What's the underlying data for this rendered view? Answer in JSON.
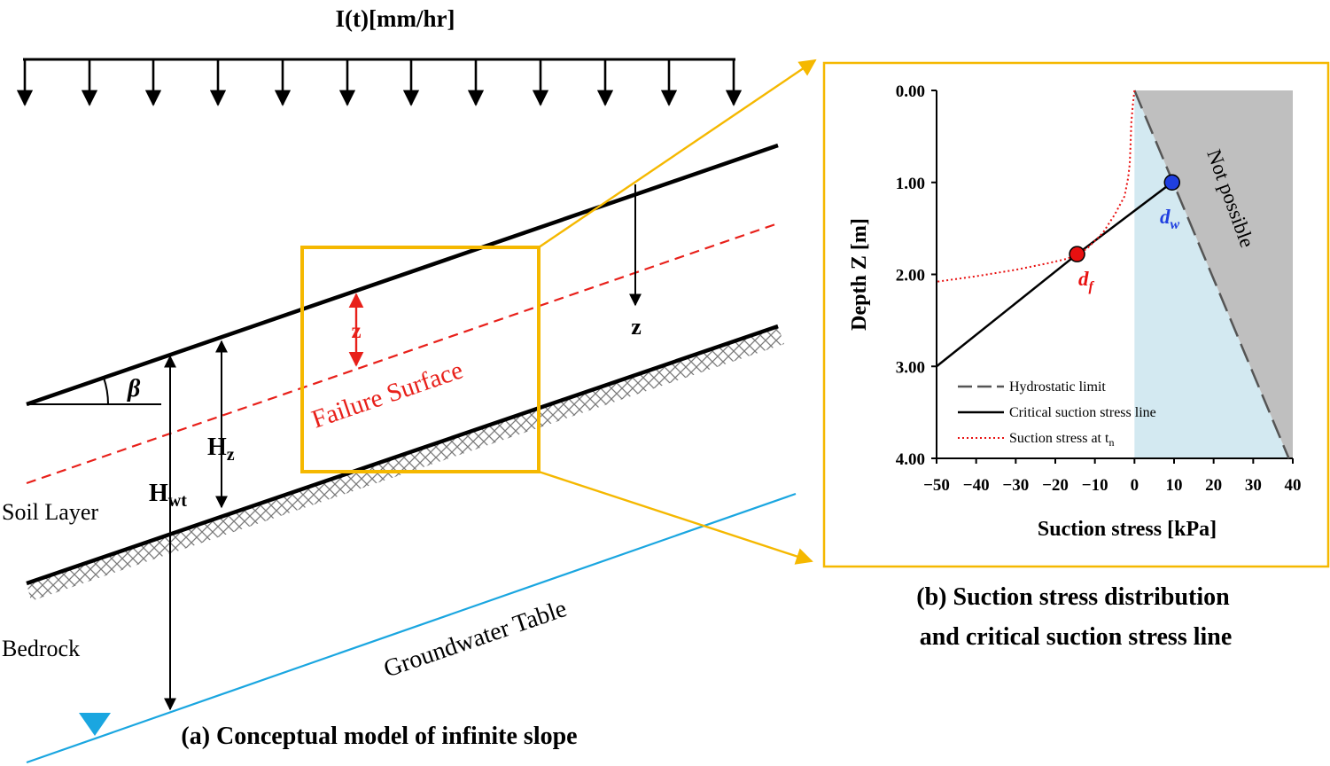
{
  "panel_a": {
    "rain_label": "I(t)[mm/hr]",
    "beta": "β",
    "z_label": "z",
    "z_red": "z",
    "failure_surface": "Failure Surface",
    "hz_main": "H",
    "hz_sub": "z",
    "hwt_main": "H",
    "hwt_sub": "wt",
    "soil_layer": "Soil Layer",
    "bedrock": "Bedrock",
    "groundwater": "Groundwater Table",
    "caption": "(a) Conceptual model of infinite slope"
  },
  "panel_b": {
    "caption_line1": "(b) Suction stress distribution",
    "caption_line2": "and critical suction stress line",
    "not_possible": "Not possible",
    "df_main": "d",
    "df_sub": "f",
    "dw_main": "d",
    "dw_sub": "w"
  },
  "colors": {
    "highlight": "#f5b800",
    "failure": "#e8201a",
    "groundwater": "#1aa6e0",
    "grey_region": "#bfbfbf",
    "blue_region": "#d3e9f1",
    "dw_marker": "#1f3fe0",
    "df_marker": "#e81010"
  },
  "chart_data": {
    "type": "line",
    "xlabel": "Suction stress  [kPa]",
    "ylabel": "Depth Z [m]",
    "xlim": [
      -50,
      40
    ],
    "ylim": [
      0,
      4
    ],
    "y_inverted": true,
    "x_ticks": [
      "−50",
      "−40",
      "−30",
      "−20",
      "−10",
      "0",
      "10",
      "20",
      "30",
      "40"
    ],
    "y_ticks": [
      "0.00",
      "1.00",
      "2.00",
      "3.00",
      "4.00"
    ],
    "legend_position": "bottom-left",
    "series": [
      {
        "name": "Hydrostatic limit",
        "style": "dashed",
        "color": "#555555",
        "x": [
          0,
          39
        ],
        "y": [
          0,
          4
        ]
      },
      {
        "name": "Critical suction stress line",
        "style": "solid",
        "color": "#000000",
        "x": [
          -50,
          -14.5,
          9.5
        ],
        "y": [
          3.0,
          1.78,
          1.0
        ]
      },
      {
        "name": "Suction stress at t",
        "name_subscript": "n",
        "style": "dotted",
        "color": "#e81010",
        "x": [
          0,
          -0.4,
          -0.8,
          -1.0,
          -1.2,
          -1.6,
          -2.5,
          -5.0,
          -8.0,
          -12.0,
          -14.5,
          -17,
          -22,
          -30,
          -40,
          -50
        ],
        "y": [
          0,
          0.15,
          0.35,
          0.6,
          0.8,
          0.95,
          1.15,
          1.35,
          1.55,
          1.72,
          1.78,
          1.83,
          1.88,
          1.95,
          2.02,
          2.08
        ]
      }
    ],
    "markers": [
      {
        "label": "d_w",
        "x": 9.5,
        "y": 1.0,
        "color": "#1f3fe0"
      },
      {
        "label": "d_f",
        "x": -14.5,
        "y": 1.78,
        "color": "#e81010"
      }
    ],
    "regions": [
      {
        "name": "Not possible",
        "color": "#bfbfbf"
      }
    ]
  }
}
